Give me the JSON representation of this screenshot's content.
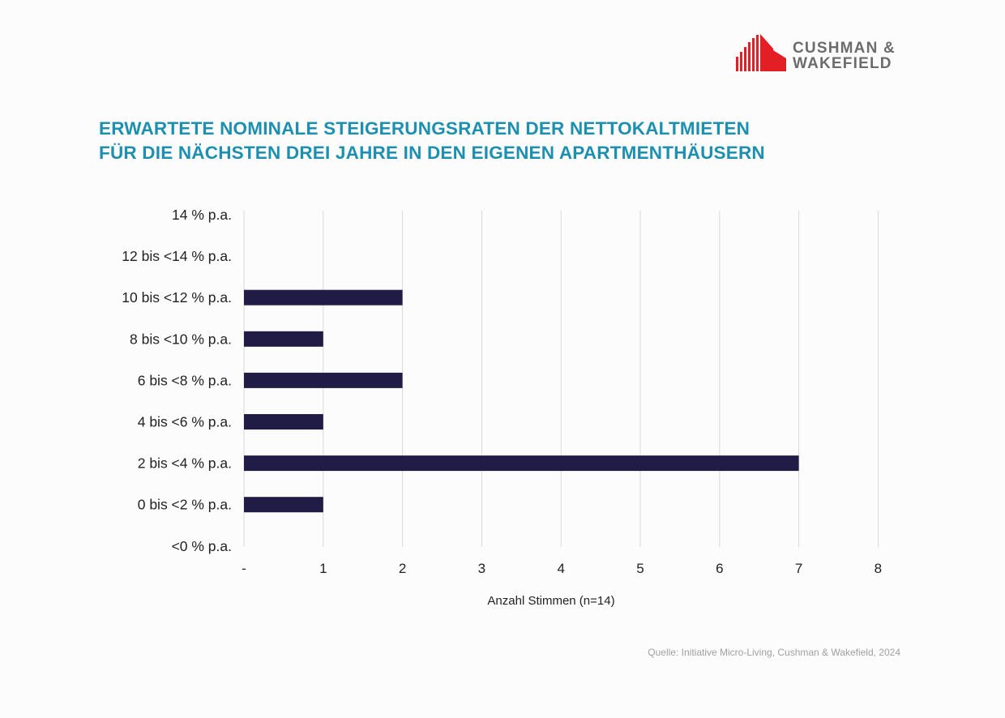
{
  "logo": {
    "line1": "CUSHMAN &",
    "line2": "WAKEFIELD",
    "brand_color": "#e31e25"
  },
  "title": {
    "line1": "ERWARTETE NOMINALE STEIGERUNGSRATEN DER NETTOKALTMIETEN",
    "line2": "FÜR DIE NÄCHSTEN DREI JAHRE IN DEN EIGENEN APARTMENTHÄUSERN"
  },
  "chart_data": {
    "type": "bar",
    "orientation": "horizontal",
    "categories": [
      "14 % p.a.",
      "12 bis <14 % p.a.",
      "10 bis <12 % p.a.",
      "8 bis <10 % p.a.",
      "6 bis <8 % p.a.",
      "4 bis <6 % p.a.",
      "2 bis <4 % p.a.",
      "0 bis <2 % p.a.",
      "<0 % p.a."
    ],
    "values": [
      0,
      0,
      2,
      1,
      2,
      1,
      7,
      1,
      0
    ],
    "xlabel": "Anzahl Stimmen (n=14)",
    "xlim": [
      0,
      8
    ],
    "xticks": [
      "-",
      "1",
      "2",
      "3",
      "4",
      "5",
      "6",
      "7",
      "8"
    ],
    "grid": "vertical",
    "bar_color": "#211c45"
  },
  "source": "Quelle: Initiative Micro-Living, Cushman & Wakefield, 2024"
}
